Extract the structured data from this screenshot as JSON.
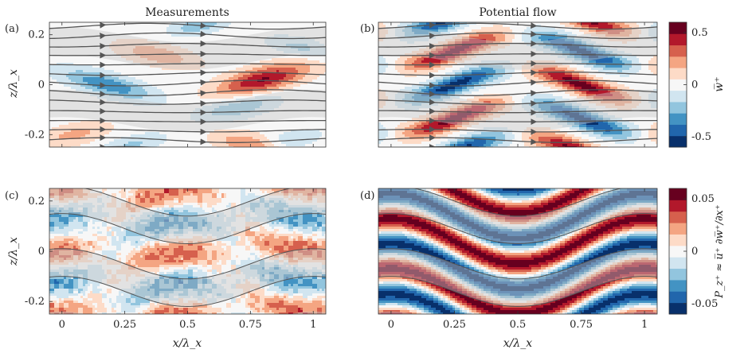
{
  "figure": {
    "column_titles": [
      "Measurements",
      "Potential flow"
    ]
  },
  "colors": {
    "diverging": [
      "#08306b",
      "#2166ac",
      "#4393c3",
      "#92c5de",
      "#d1e5f0",
      "#f7f7f7",
      "#fddbc7",
      "#f4a582",
      "#d6604d",
      "#b2182b",
      "#67001f"
    ],
    "streamline": "#555555",
    "overlay": "#c8c8c8"
  },
  "chart_data": [
    {
      "id": "a",
      "panel_label": "(a)",
      "type": "heatmap",
      "title": "Measurements",
      "ylabel": "z/λ_x",
      "xlabel": "",
      "xlim": [
        -0.05,
        1.05
      ],
      "ylim": [
        -0.25,
        0.25
      ],
      "yticks": [
        -0.2,
        0,
        0.2
      ],
      "ytick_labels": [
        "-0.2",
        "0",
        "0.2"
      ],
      "xticks": [
        0,
        0.25,
        0.5,
        0.75,
        1
      ],
      "xtick_labels": [],
      "overlay": "streamlines with arrows",
      "colorbar": null
    },
    {
      "id": "b",
      "panel_label": "(b)",
      "type": "heatmap",
      "title": "Potential flow",
      "ylabel": "",
      "xlabel": "",
      "xlim": [
        -0.05,
        1.05
      ],
      "ylim": [
        -0.25,
        0.25
      ],
      "xticks": [
        0,
        0.25,
        0.5,
        0.75,
        1
      ],
      "xtick_labels": [],
      "overlay": "streamlines with arrows",
      "colorbar": {
        "label": "w̅⁺",
        "range": [
          -0.6,
          0.6
        ],
        "ticks": [
          0.5,
          0,
          -0.5
        ],
        "tick_labels": [
          "0.5",
          "0",
          "-0.5"
        ]
      }
    },
    {
      "id": "c",
      "panel_label": "(c)",
      "type": "heatmap",
      "title": "",
      "ylabel": "z/λ_x",
      "xlabel": "x/λ_x",
      "xlim": [
        -0.05,
        1.05
      ],
      "ylim": [
        -0.25,
        0.25
      ],
      "yticks": [
        -0.2,
        0,
        0.2
      ],
      "ytick_labels": [
        "-0.2",
        "0",
        "0.2"
      ],
      "xticks": [
        0,
        0.25,
        0.5,
        0.75,
        1
      ],
      "xtick_labels": [
        "0",
        "0.25",
        "0.5",
        "0.75",
        "1"
      ],
      "overlay": "wavy contour lines",
      "colorbar": null
    },
    {
      "id": "d",
      "panel_label": "(d)",
      "type": "heatmap",
      "title": "",
      "ylabel": "",
      "xlabel": "x/λ_x",
      "xlim": [
        -0.05,
        1.05
      ],
      "ylim": [
        -0.25,
        0.25
      ],
      "xticks": [
        0,
        0.25,
        0.5,
        0.75,
        1
      ],
      "xtick_labels": [
        "0",
        "0.25",
        "0.5",
        "0.75",
        "1"
      ],
      "overlay": "wavy contour lines",
      "colorbar": {
        "label": "P_z⁺ ≈ u̅⁺ ∂w̅⁺/∂x⁺",
        "range": [
          -0.06,
          0.06
        ],
        "ticks": [
          0.05,
          0,
          -0.05
        ],
        "tick_labels": [
          "0.05",
          "0",
          "-0.05"
        ]
      }
    }
  ]
}
